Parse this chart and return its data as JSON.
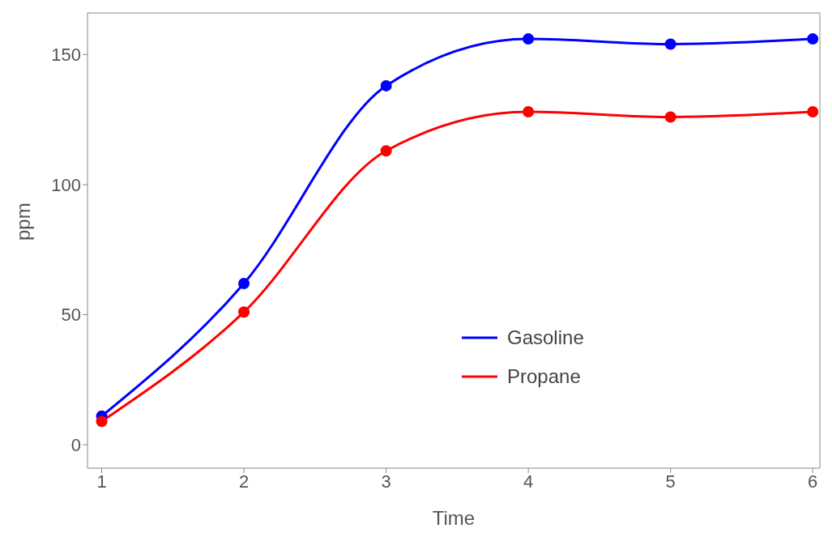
{
  "chart_data": {
    "type": "line",
    "xlabel": "Time",
    "ylabel": "ppm",
    "x": [
      1,
      2,
      3,
      4,
      5,
      6
    ],
    "series": [
      {
        "name": "Gasoline",
        "color": "#0000ff",
        "values": [
          11,
          62,
          138,
          156,
          154,
          156
        ]
      },
      {
        "name": "Propane",
        "color": "#ff0000",
        "values": [
          9,
          51,
          113,
          128,
          126,
          128
        ]
      }
    ],
    "xlim": [
      0.9,
      6.05
    ],
    "xticks": [
      1,
      2,
      3,
      4,
      5,
      6
    ],
    "ylim": [
      -9,
      166
    ],
    "yticks": [
      0,
      50,
      100,
      150
    ],
    "marker": "circle",
    "line_style": "solid",
    "legend": "bottom",
    "grid": false
  }
}
